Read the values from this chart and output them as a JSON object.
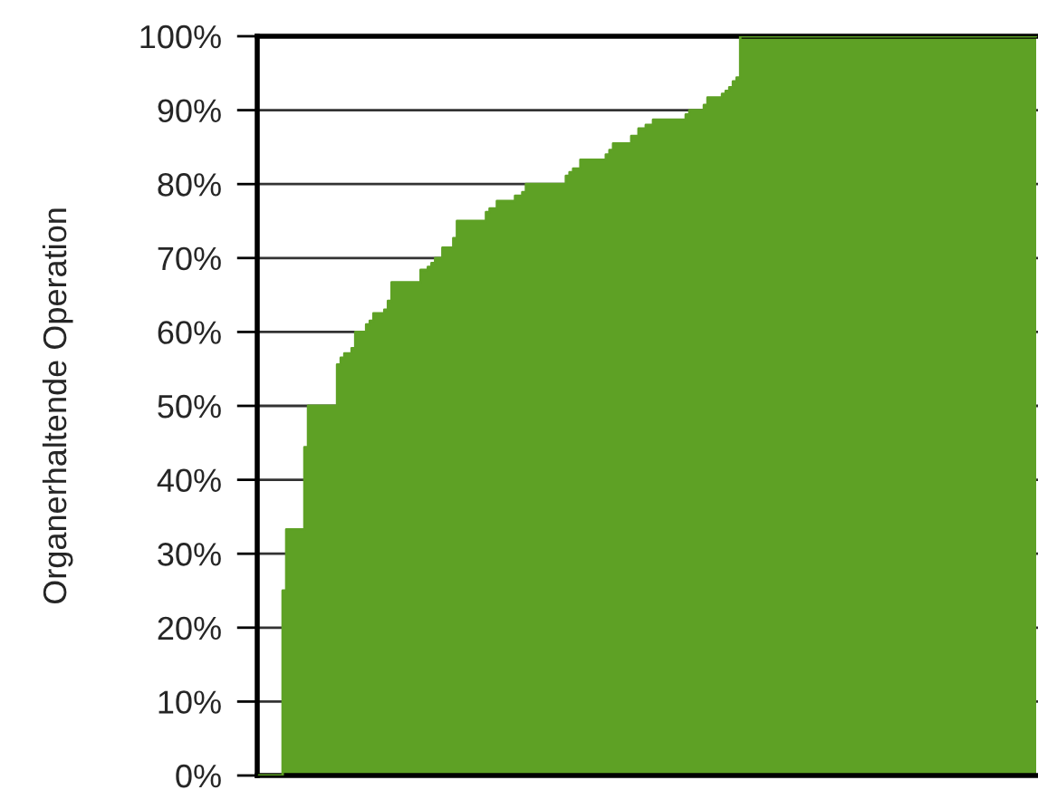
{
  "chart_data": {
    "type": "area",
    "ylabel": "Organerhaltende Operation",
    "color": "#5ea125",
    "ylim": [
      0,
      100
    ],
    "yticks": [
      {
        "value": 0,
        "label": "0%"
      },
      {
        "value": 10,
        "label": "10%"
      },
      {
        "value": 20,
        "label": "20%"
      },
      {
        "value": 30,
        "label": "30%"
      },
      {
        "value": 40,
        "label": "40%"
      },
      {
        "value": 50,
        "label": "50%"
      },
      {
        "value": 60,
        "label": "60%"
      },
      {
        "value": 70,
        "label": "70%"
      },
      {
        "value": 80,
        "label": "80%"
      },
      {
        "value": 90,
        "label": "90%"
      },
      {
        "value": 100,
        "label": "100%"
      }
    ],
    "grid": "y",
    "tick_labels": "y",
    "categories": [
      null,
      null,
      null,
      null,
      null,
      null,
      null,
      null,
      null,
      null,
      null,
      null,
      null,
      null,
      null,
      null,
      null,
      null,
      null,
      null,
      null,
      null,
      null,
      null,
      null,
      null,
      null,
      null,
      null,
      null,
      null,
      null,
      null,
      null,
      null,
      null,
      null,
      null,
      null,
      null,
      null,
      null,
      null,
      null,
      null,
      null,
      null,
      null,
      null,
      null,
      null,
      null,
      null,
      null,
      null,
      null,
      null,
      null,
      null,
      null,
      null,
      null,
      null,
      null,
      null,
      null,
      null,
      null,
      null,
      null,
      null,
      null,
      null,
      null,
      null,
      null,
      null,
      null,
      null,
      null,
      null,
      null,
      null,
      null,
      null,
      null,
      null,
      null,
      null,
      null,
      null,
      null,
      null,
      null,
      null,
      null,
      null,
      null,
      null,
      null,
      null,
      null,
      null,
      null,
      null,
      null,
      null,
      null,
      null,
      null,
      null,
      null,
      null,
      null,
      null,
      null,
      null,
      null,
      null,
      null,
      null,
      null,
      null,
      null,
      null,
      null,
      null,
      null,
      null,
      null,
      null,
      null,
      null,
      null,
      null,
      null,
      null,
      null,
      null,
      null,
      null,
      null,
      null,
      null,
      null,
      null,
      null,
      null,
      null,
      null,
      null,
      null,
      null,
      null,
      null,
      null,
      null,
      null,
      null,
      null,
      null,
      null,
      null,
      null,
      null,
      null,
      null,
      null,
      null,
      null,
      null,
      null,
      null,
      null,
      null,
      null,
      null,
      null,
      null,
      null,
      null,
      null,
      null,
      null,
      null,
      null,
      null,
      null,
      null,
      null,
      null,
      null,
      null,
      null,
      null,
      null,
      null,
      null,
      null,
      null,
      null,
      null,
      null,
      null,
      null,
      null,
      null,
      null,
      null,
      null,
      null,
      null,
      null,
      null,
      null
    ],
    "values": [
      0,
      0,
      0,
      0,
      0,
      0,
      0,
      25,
      33.3,
      33.3,
      33.3,
      33.3,
      33.3,
      44.4,
      50,
      50,
      50,
      50,
      50,
      50,
      50,
      50,
      55.6,
      56.5,
      57.1,
      57.1,
      57.8,
      60,
      60,
      60,
      61,
      61.5,
      62.5,
      62.5,
      62.5,
      63,
      64.2,
      66.7,
      66.7,
      66.7,
      66.7,
      66.7,
      66.7,
      66.7,
      66.7,
      68.4,
      68.4,
      68.8,
      69.3,
      70,
      70,
      71.4,
      71.4,
      71.4,
      72.7,
      75,
      75,
      75,
      75,
      75,
      75,
      75,
      75,
      76.2,
      76.7,
      76.7,
      77.7,
      77.7,
      77.7,
      77.7,
      77.7,
      78.4,
      78.4,
      78.9,
      80,
      80,
      80,
      80,
      80,
      80,
      80,
      80,
      80,
      80,
      80,
      81.1,
      81.6,
      82.1,
      82.1,
      83.3,
      83.3,
      83.3,
      83.3,
      83.3,
      83.3,
      83.3,
      84,
      84.6,
      85.5,
      85.5,
      85.5,
      85.5,
      85.5,
      86.5,
      86.5,
      87.5,
      87.5,
      88,
      88,
      88.7,
      88.7,
      88.7,
      88.7,
      88.7,
      88.7,
      88.7,
      88.7,
      88.7,
      89.4,
      90,
      90,
      90,
      90,
      90.7,
      91.7,
      91.7,
      91.7,
      91.7,
      92.2,
      92.6,
      93.1,
      93.9,
      94.4,
      100,
      100,
      100,
      100,
      100,
      100,
      100,
      100,
      100,
      100,
      100,
      100,
      100,
      100,
      100,
      100,
      100,
      100,
      100,
      100,
      100,
      100,
      100,
      100,
      100,
      100,
      100,
      100,
      100,
      100,
      100,
      100,
      100,
      100,
      100,
      100,
      100,
      100,
      100,
      100,
      100,
      100,
      100,
      100,
      100,
      100,
      100,
      100,
      100,
      100,
      100,
      100,
      100,
      100,
      100,
      100,
      100,
      100,
      100,
      100,
      100,
      100,
      100,
      100,
      100,
      100,
      100,
      100,
      100,
      100,
      100,
      100,
      100,
      100,
      100,
      100,
      100,
      100,
      100,
      100,
      100,
      100
    ]
  }
}
